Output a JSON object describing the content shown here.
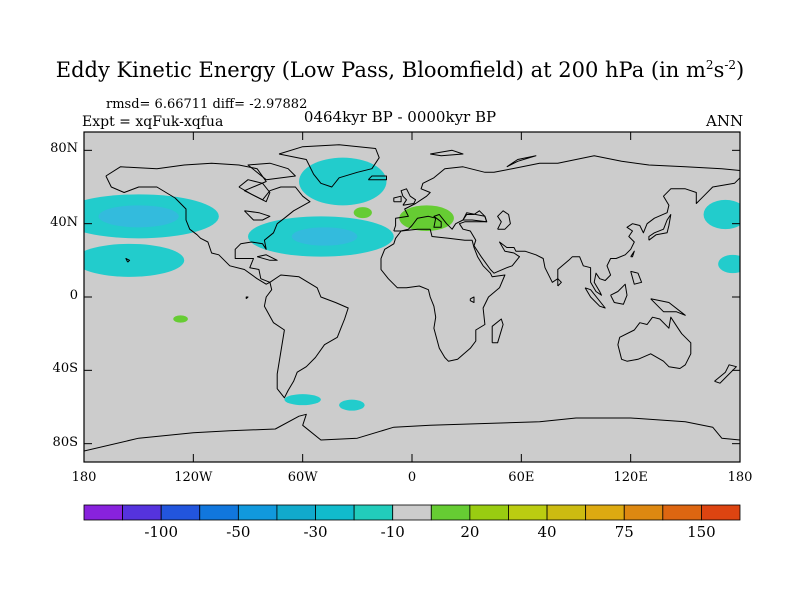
{
  "title": {
    "main": "Eddy Kinetic Energy (Low Pass, Bloomfield) at 200 hPa (in m",
    "sup1": "2",
    "mid": "s",
    "sup2": "-2",
    "end": ")"
  },
  "stats": "rmsd= 6.66711 diff= -2.97882",
  "expt": "Expt = xqFuk-xqfua",
  "period": "0464kyr BP - 0000kyr BP",
  "season": "ANN",
  "colors": {
    "land_bg": "#cccccc",
    "pos_light": "#66cc33",
    "neg_light": "#22cccc",
    "neg_mid": "#33bbdd"
  },
  "map": {
    "projection": "cylindrical-equidistant",
    "lon_range": [
      -180,
      180
    ],
    "lat_range": [
      -90,
      90
    ],
    "y_ticks": [
      {
        "lat": 80,
        "label": "80N"
      },
      {
        "lat": 40,
        "label": "40N"
      },
      {
        "lat": 0,
        "label": "0"
      },
      {
        "lat": -40,
        "label": "40S"
      },
      {
        "lat": -80,
        "label": "80S"
      }
    ],
    "x_ticks": [
      {
        "lon": -180,
        "label": "180"
      },
      {
        "lon": -120,
        "label": "120W"
      },
      {
        "lon": -60,
        "label": "60W"
      },
      {
        "lon": 0,
        "label": "0"
      },
      {
        "lon": 60,
        "label": "60E"
      },
      {
        "lon": 120,
        "label": "120E"
      },
      {
        "lon": 180,
        "label": "180"
      }
    ],
    "anomaly_regions": [
      {
        "name": "n-pacific-neg",
        "level": -10,
        "lon": -150,
        "lat": 44,
        "dlon": 44,
        "dlat": 12
      },
      {
        "name": "n-pacific-neg-core",
        "level": -30,
        "lon": -150,
        "lat": 44,
        "dlon": 22,
        "dlat": 6
      },
      {
        "name": "subtropical-pacific-neg",
        "level": -10,
        "lon": -155,
        "lat": 20,
        "dlon": 30,
        "dlat": 9
      },
      {
        "name": "greenland-neg",
        "level": -10,
        "lon": -38,
        "lat": 63,
        "dlon": 24,
        "dlat": 13
      },
      {
        "name": "atlantic-neg",
        "level": -10,
        "lon": -50,
        "lat": 33,
        "dlon": 40,
        "dlat": 11
      },
      {
        "name": "atlantic-neg-core",
        "level": -30,
        "lon": -48,
        "lat": 33,
        "dlon": 18,
        "dlat": 5
      },
      {
        "name": "mediterranean-pos",
        "level": 20,
        "lon": 8,
        "lat": 43,
        "dlon": 15,
        "dlat": 7
      },
      {
        "name": "n-atlantic-pos",
        "level": 20,
        "lon": -27,
        "lat": 46,
        "dlon": 5,
        "dlat": 3
      },
      {
        "name": "e-pacific-pos",
        "level": 20,
        "lon": -127,
        "lat": -12,
        "dlon": 4,
        "dlat": 2
      },
      {
        "name": "nw-pacific-neg",
        "level": -10,
        "lon": 172,
        "lat": 45,
        "dlon": 12,
        "dlat": 8
      },
      {
        "name": "w-pacific-neg",
        "level": -10,
        "lon": 176,
        "lat": 18,
        "dlon": 8,
        "dlat": 5
      },
      {
        "name": "s-america-neg",
        "level": -10,
        "lon": -60,
        "lat": -56,
        "dlon": 10,
        "dlat": 3
      },
      {
        "name": "s-atlantic-neg",
        "level": -10,
        "lon": -33,
        "lat": -59,
        "dlon": 7,
        "dlat": 3
      }
    ]
  },
  "colorbar": {
    "colors": [
      "#8822dd",
      "#5533dd",
      "#2255dd",
      "#1177dd",
      "#1199dd",
      "#11aacc",
      "#11bbcc",
      "#22ccbb",
      "#cccccc",
      "#66cc33",
      "#99cc11",
      "#bbcc11",
      "#ccbb11",
      "#ddaa11",
      "#dd8811",
      "#dd6611",
      "#dd4411"
    ],
    "labels": [
      {
        "index": 2,
        "label": "-100"
      },
      {
        "index": 4,
        "label": "-50"
      },
      {
        "index": 6,
        "label": "-30"
      },
      {
        "index": 8,
        "label": "-10"
      },
      {
        "index": 10,
        "label": "20"
      },
      {
        "index": 12,
        "label": "40"
      },
      {
        "index": 14,
        "label": "75"
      },
      {
        "index": 16,
        "label": "150"
      }
    ]
  }
}
